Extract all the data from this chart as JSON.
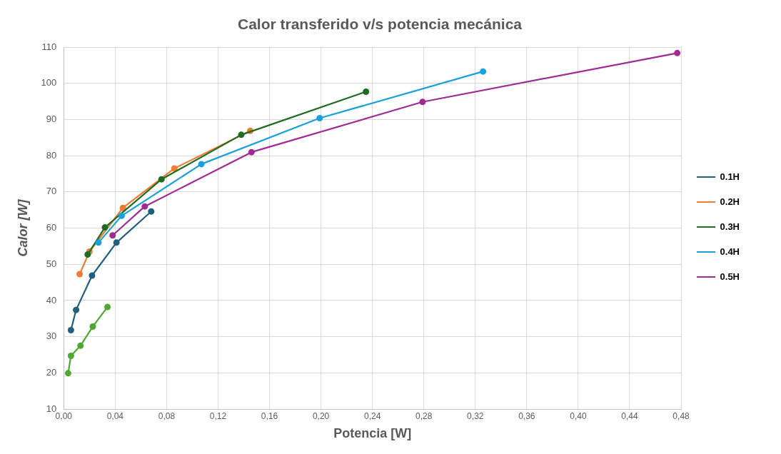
{
  "chart_data": {
    "type": "line",
    "title": "Calor transferido v/s potencia mecánica",
    "xlabel": "Potencia [W]",
    "ylabel": "Calor [W]",
    "xlim": [
      0,
      0.48
    ],
    "ylim": [
      10,
      110
    ],
    "xticks": [
      {
        "value": 0,
        "label": "0,00"
      },
      {
        "value": 0.04,
        "label": "0,04"
      },
      {
        "value": 0.08,
        "label": "0,08"
      },
      {
        "value": 0.12,
        "label": "0,12"
      },
      {
        "value": 0.16,
        "label": "0,16"
      },
      {
        "value": 0.2,
        "label": "0,20"
      },
      {
        "value": 0.24,
        "label": "0,24"
      },
      {
        "value": 0.28,
        "label": "0,28"
      },
      {
        "value": 0.32,
        "label": "0,32"
      },
      {
        "value": 0.36,
        "label": "0,36"
      },
      {
        "value": 0.4,
        "label": "0,40"
      },
      {
        "value": 0.44,
        "label": "0,44"
      },
      {
        "value": 0.48,
        "label": "0,48"
      }
    ],
    "yticks": [
      10,
      20,
      30,
      40,
      50,
      60,
      70,
      80,
      90,
      100,
      110
    ],
    "grid": true,
    "legend": "right",
    "marker": "circle",
    "line_style": "solid",
    "series": [
      {
        "name": "0.1H",
        "color": "#215f7a",
        "x": [
          0.0056,
          0.0096,
          0.022,
          0.041,
          0.068
        ],
        "values": [
          31.8,
          37.4,
          46.9,
          56.0,
          64.6
        ]
      },
      {
        "name": "0.2H",
        "color": "#ed7d31",
        "x": [
          0.0124,
          0.02,
          0.046,
          0.086,
          0.145
        ],
        "values": [
          47.3,
          53.5,
          65.6,
          76.5,
          86.9
        ]
      },
      {
        "name": "0.3H",
        "color": "#1e6b24",
        "x": [
          0.0186,
          0.032,
          0.076,
          0.138,
          0.235
        ],
        "values": [
          52.7,
          60.2,
          73.5,
          85.8,
          97.7
        ]
      },
      {
        "name": "0.4H",
        "color": "#1ba1d9",
        "x": [
          0.027,
          0.045,
          0.107,
          0.199,
          0.326
        ],
        "values": [
          56.0,
          63.4,
          77.7,
          90.4,
          103.3
        ]
      },
      {
        "name": "0.5H",
        "color": "#a02b93",
        "x": [
          0.038,
          0.063,
          0.146,
          0.279,
          0.477
        ],
        "values": [
          58.0,
          66.0,
          81.0,
          94.9,
          108.4
        ]
      },
      {
        "color": "#4ea72e",
        "x": [
          0.0034,
          0.0056,
          0.013,
          0.0226,
          0.034
        ],
        "values": [
          19.9,
          24.7,
          27.5,
          32.8,
          38.2
        ]
      }
    ]
  }
}
